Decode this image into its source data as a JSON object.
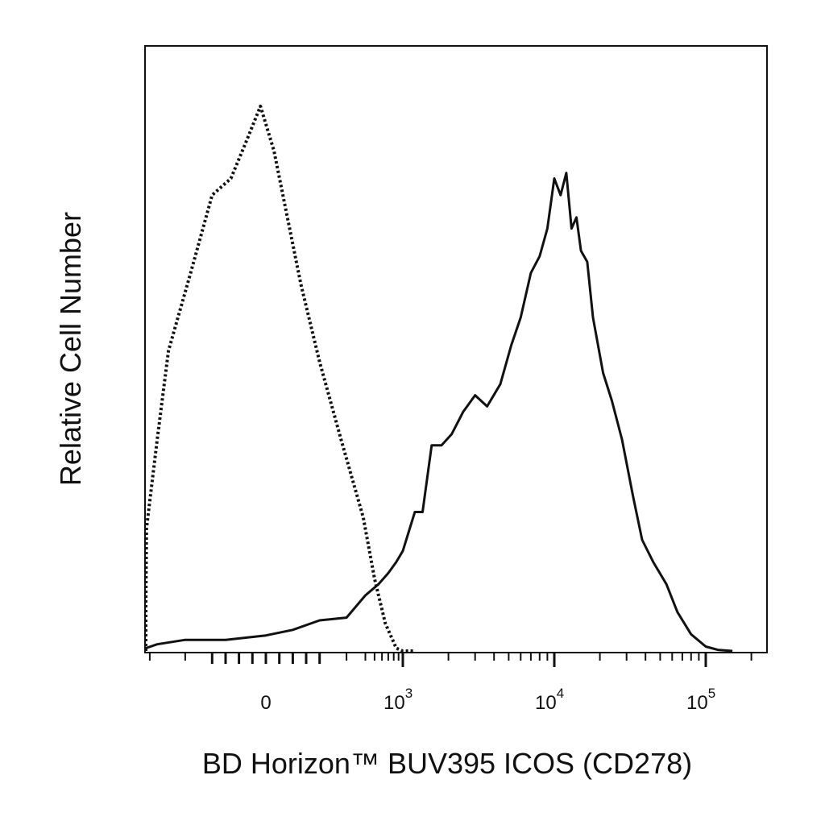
{
  "chart_data": {
    "type": "line",
    "title": "",
    "xlabel": "BD Horizon™ BUV395 ICOS (CD278)",
    "ylabel": "Relative Cell Number",
    "x_scale": "biexponential",
    "xlim": [
      -1500,
      200000
    ],
    "ylim": [
      0,
      1.0
    ],
    "grid": false,
    "legend": "none",
    "x_tick_labels": [
      {
        "value": 0,
        "base": "0",
        "exp": ""
      },
      {
        "value": 1000,
        "base": "10",
        "exp": "3"
      },
      {
        "value": 10000,
        "base": "10",
        "exp": "4"
      },
      {
        "value": 100000,
        "base": "10",
        "exp": "5"
      }
    ],
    "series": [
      {
        "style": "dotted",
        "color": "#111111",
        "x": [
          -1300,
          -1050,
          -850,
          -650,
          -500,
          -380,
          -280,
          -200,
          -130,
          -70,
          -20,
          30,
          80,
          130,
          200,
          280,
          380,
          500,
          650,
          850,
          1000,
          1200
        ],
        "y": [
          0,
          0.01,
          0.08,
          0.22,
          0.38,
          0.54,
          0.68,
          0.82,
          0.85,
          0.92,
          0.98,
          0.9,
          0.78,
          0.66,
          0.52,
          0.38,
          0.24,
          0.13,
          0.05,
          0.005,
          0,
          0
        ]
      },
      {
        "style": "solid",
        "color": "#111111",
        "x": [
          -900,
          -700,
          -500,
          -300,
          -150,
          0,
          100,
          200,
          300,
          400,
          550,
          700,
          850,
          1000,
          1200,
          1350,
          1550,
          1800,
          2100,
          2500,
          3000,
          3600,
          4400,
          5200,
          6000,
          7000,
          8000,
          9000,
          10000,
          11000,
          12000,
          13000,
          14000,
          15000,
          16500,
          18000,
          21000,
          24000,
          28000,
          33000,
          38000,
          45000,
          55000,
          65000,
          80000,
          100000,
          120000,
          150000
        ],
        "y": [
          0,
          0.005,
          0.012,
          0.02,
          0.02,
          0.028,
          0.038,
          0.055,
          0.06,
          0.1,
          0.12,
          0.14,
          0.16,
          0.18,
          0.25,
          0.25,
          0.37,
          0.37,
          0.39,
          0.43,
          0.46,
          0.44,
          0.48,
          0.55,
          0.6,
          0.68,
          0.71,
          0.76,
          0.85,
          0.82,
          0.86,
          0.76,
          0.78,
          0.72,
          0.7,
          0.6,
          0.5,
          0.45,
          0.38,
          0.28,
          0.2,
          0.16,
          0.12,
          0.07,
          0.03,
          0.008,
          0.002,
          0
        ]
      }
    ]
  }
}
